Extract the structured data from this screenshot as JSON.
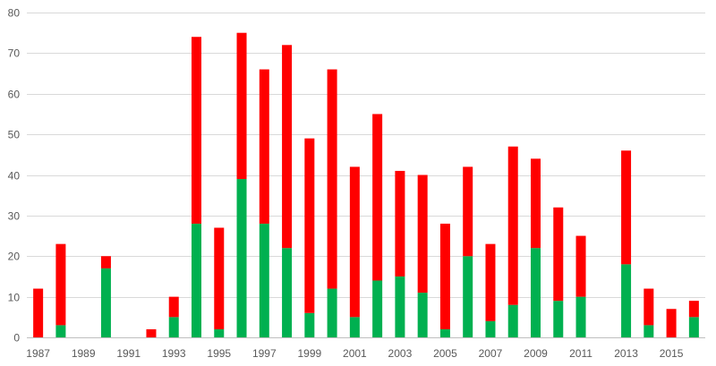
{
  "chart_data": {
    "type": "bar",
    "stacked": true,
    "title": "",
    "xlabel": "",
    "ylabel": "",
    "ylim": [
      0,
      80
    ],
    "y_ticks": [
      0,
      10,
      20,
      30,
      40,
      50,
      60,
      70,
      80
    ],
    "grid": true,
    "legend": "none",
    "categories": [
      "1987",
      "1988",
      "1989",
      "1990",
      "1991",
      "1992",
      "1993",
      "1994",
      "1995",
      "1996",
      "1997",
      "1998",
      "1999",
      "2000",
      "2001",
      "2002",
      "2003",
      "2004",
      "2005",
      "2006",
      "2007",
      "2008",
      "2009",
      "2010",
      "2011",
      "2012",
      "2013",
      "2014",
      "2015",
      "2016"
    ],
    "x_tick_labels": [
      "1987",
      "1989",
      "1991",
      "1993",
      "1995",
      "1997",
      "1999",
      "2001",
      "2003",
      "2005",
      "2007",
      "2009",
      "2011",
      "2013",
      "2015"
    ],
    "series": [
      {
        "color": "#00b050",
        "values": [
          0,
          3,
          0,
          17,
          0,
          0,
          5,
          28,
          2,
          39,
          28,
          22,
          6,
          12,
          5,
          14,
          15,
          11,
          2,
          20,
          4,
          8,
          22,
          9,
          10,
          0,
          18,
          3,
          0,
          5
        ]
      },
      {
        "color": "#ff0000",
        "values": [
          12,
          20,
          0,
          3,
          0,
          2,
          5,
          46,
          25,
          36,
          38,
          50,
          43,
          54,
          37,
          41,
          26,
          29,
          26,
          22,
          19,
          39,
          22,
          23,
          15,
          0,
          28,
          9,
          7,
          4
        ]
      }
    ]
  }
}
